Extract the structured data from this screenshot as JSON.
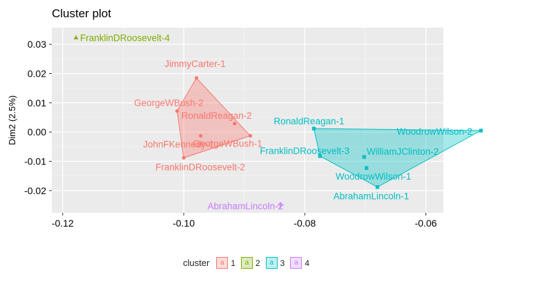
{
  "chart_data": {
    "type": "scatter",
    "title": "Cluster plot",
    "xlabel": "",
    "ylabel": "Dim2 (2.5%)",
    "xlim": [
      -0.1218,
      -0.0571
    ],
    "ylim": [
      -0.0276,
      0.0357
    ],
    "x_ticks": [
      -0.12,
      -0.1,
      -0.08,
      -0.06
    ],
    "x_tick_labels": [
      "-0.12",
      "-0.10",
      "-0.08",
      "-0.06"
    ],
    "y_ticks": [
      0.03,
      0.02,
      0.01,
      0.0,
      -0.01,
      -0.02
    ],
    "y_tick_labels": [
      "0.03",
      "0.02",
      "0.01",
      "0.00",
      "-0.01",
      "-0.02"
    ],
    "grid": true,
    "legend": {
      "title": "cluster",
      "placement": "bottom",
      "entries": [
        {
          "label": "1",
          "glyph": "a",
          "color": "#f8766d"
        },
        {
          "label": "2",
          "glyph": "a",
          "color": "#7cae00"
        },
        {
          "label": "3",
          "glyph": "a",
          "color": "#00bfc4"
        },
        {
          "label": "4",
          "glyph": "a",
          "color": "#c77cff"
        }
      ]
    },
    "series": [
      {
        "cluster": "1",
        "color": "#f8766d",
        "marker": "circle",
        "points": [
          {
            "label": "JimmyCarter-1",
            "x": -0.0979,
            "y": 0.0185
          },
          {
            "label": "GeorgeWBush-2",
            "x": -0.1011,
            "y": 0.0072
          },
          {
            "label": "RonaldReagan-2",
            "x": -0.0916,
            "y": 0.0029
          },
          {
            "label": "GeorgeWBush-1",
            "x": -0.089,
            "y": -0.0013
          },
          {
            "label": "JohnFKennedy-1",
            "x": -0.0972,
            "y": -0.0013
          },
          {
            "label": "FranklinDRoosevelt-2",
            "x": -0.1,
            "y": -0.0088
          }
        ],
        "hull": [
          "JimmyCarter-1",
          "GeorgeWBush-1",
          "FranklinDRoosevelt-2",
          "GeorgeWBush-2"
        ]
      },
      {
        "cluster": "2",
        "color": "#7cae00",
        "marker": "triangle",
        "points": [
          {
            "label": "FranklinDRoosevelt-4",
            "x": -0.1178,
            "y": 0.0323
          }
        ],
        "hull": []
      },
      {
        "cluster": "3",
        "color": "#00bfc4",
        "marker": "square",
        "points": [
          {
            "label": "RonaldReagan-1",
            "x": -0.0785,
            "y": 0.0012
          },
          {
            "label": "WoodrowWilson-2",
            "x": -0.0509,
            "y": 0.0005
          },
          {
            "label": "FranklinDRoosevelt-3",
            "x": -0.0775,
            "y": -0.0082
          },
          {
            "label": "WilliamJClinton-2",
            "x": -0.0702,
            "y": -0.0085
          },
          {
            "label": "WoodrowWilson-1",
            "x": -0.0698,
            "y": -0.0123
          },
          {
            "label": "AbrahamLincoln-1",
            "x": -0.068,
            "y": -0.0188
          }
        ],
        "hull": [
          "RonaldReagan-1",
          "WoodrowWilson-2",
          "AbrahamLincoln-1",
          "FranklinDRoosevelt-3"
        ]
      },
      {
        "cluster": "4",
        "color": "#c77cff",
        "marker": "plus",
        "points": [
          {
            "label": "AbrahamLincoln-2",
            "x": -0.084,
            "y": -0.025
          }
        ],
        "hull": []
      }
    ]
  }
}
